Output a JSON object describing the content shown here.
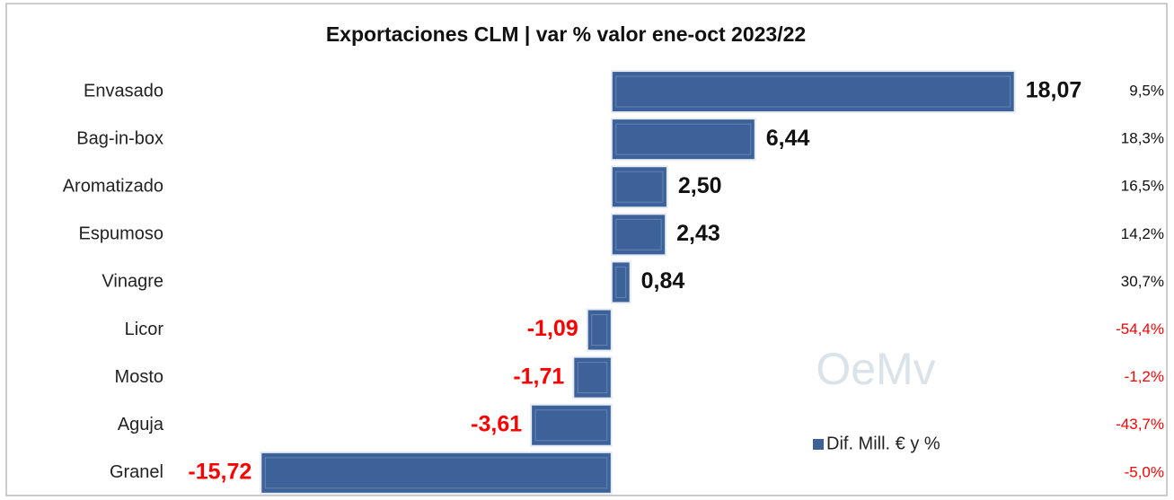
{
  "chart_data": {
    "type": "bar",
    "orientation": "horizontal",
    "title": "Exportaciones CLM | var % valor ene-oct 2023/22",
    "watermark": "OeMv",
    "categories": [
      "Envasado",
      "Bag-in-box",
      "Aromatizado",
      "Espumoso",
      "Vinagre",
      "Licor",
      "Mosto",
      "Aguja",
      "Granel"
    ],
    "series": [
      {
        "name": "Dif. Mill. € y %",
        "color": "#3d6299",
        "values": [
          18.07,
          6.44,
          2.5,
          2.43,
          0.84,
          -1.09,
          -1.71,
          -3.61,
          -15.72
        ],
        "value_labels": [
          "18,07",
          "6,44",
          "2,50",
          "2,43",
          "0,84",
          "-1,09",
          "-1,71",
          "-3,61",
          "-15,72"
        ]
      }
    ],
    "percent_values": [
      9.5,
      18.3,
      16.5,
      14.2,
      30.7,
      -54.4,
      -1.2,
      -43.7,
      -5.0
    ],
    "percent_labels": [
      "9,5%",
      "18,3%",
      "16,5%",
      "14,2%",
      "30,7%",
      "-54,4%",
      "-1,2%",
      "-43,7%",
      "-5,0%"
    ],
    "negative_color": "#ff0000",
    "positive_label_color": "#111111",
    "xlim": [
      -17,
      24
    ],
    "legend": "bottom-right"
  }
}
